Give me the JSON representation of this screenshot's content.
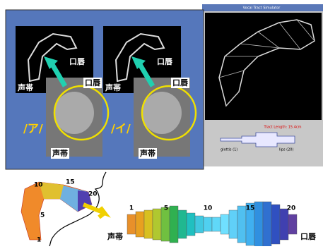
{
  "window": {
    "title": "Vocal Tract Simulator",
    "tract_length": "Tract Length: 15.4cm",
    "glottis_label": "glottis (1)",
    "lips_label": "lips (20)"
  },
  "panels": [
    {
      "vowel": "/ア/",
      "model_lips": "口唇",
      "model_glottis": "声帯",
      "mri_lips": "口唇",
      "mri_glottis": "声帯"
    },
    {
      "vowel": "/イ/",
      "model_lips": "口唇",
      "model_glottis": "声帯",
      "mri_lips": "口唇",
      "mri_glottis": "声帯"
    }
  ],
  "tract_diagram": {
    "section_labels": [
      10,
      15,
      20,
      5,
      1
    ]
  },
  "area_function": {
    "section_labels": [
      1,
      5,
      10,
      15,
      20
    ],
    "glottis": "声帯",
    "lips": "口唇"
  }
}
